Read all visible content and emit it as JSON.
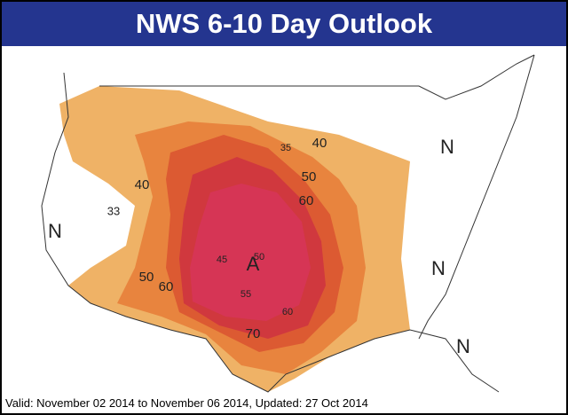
{
  "header": {
    "title": "NWS 6-10 Day Outlook"
  },
  "map": {
    "labels": [
      "N",
      "N",
      "N",
      "N",
      "A",
      "40",
      "33",
      "50",
      "60",
      "45",
      "50",
      "55",
      "60",
      "70",
      "35",
      "40",
      "50",
      "60"
    ]
  },
  "footer": {
    "text": "Valid: November 02 2014 to November 06 2014, Updated: 27 Oct 2014"
  }
}
